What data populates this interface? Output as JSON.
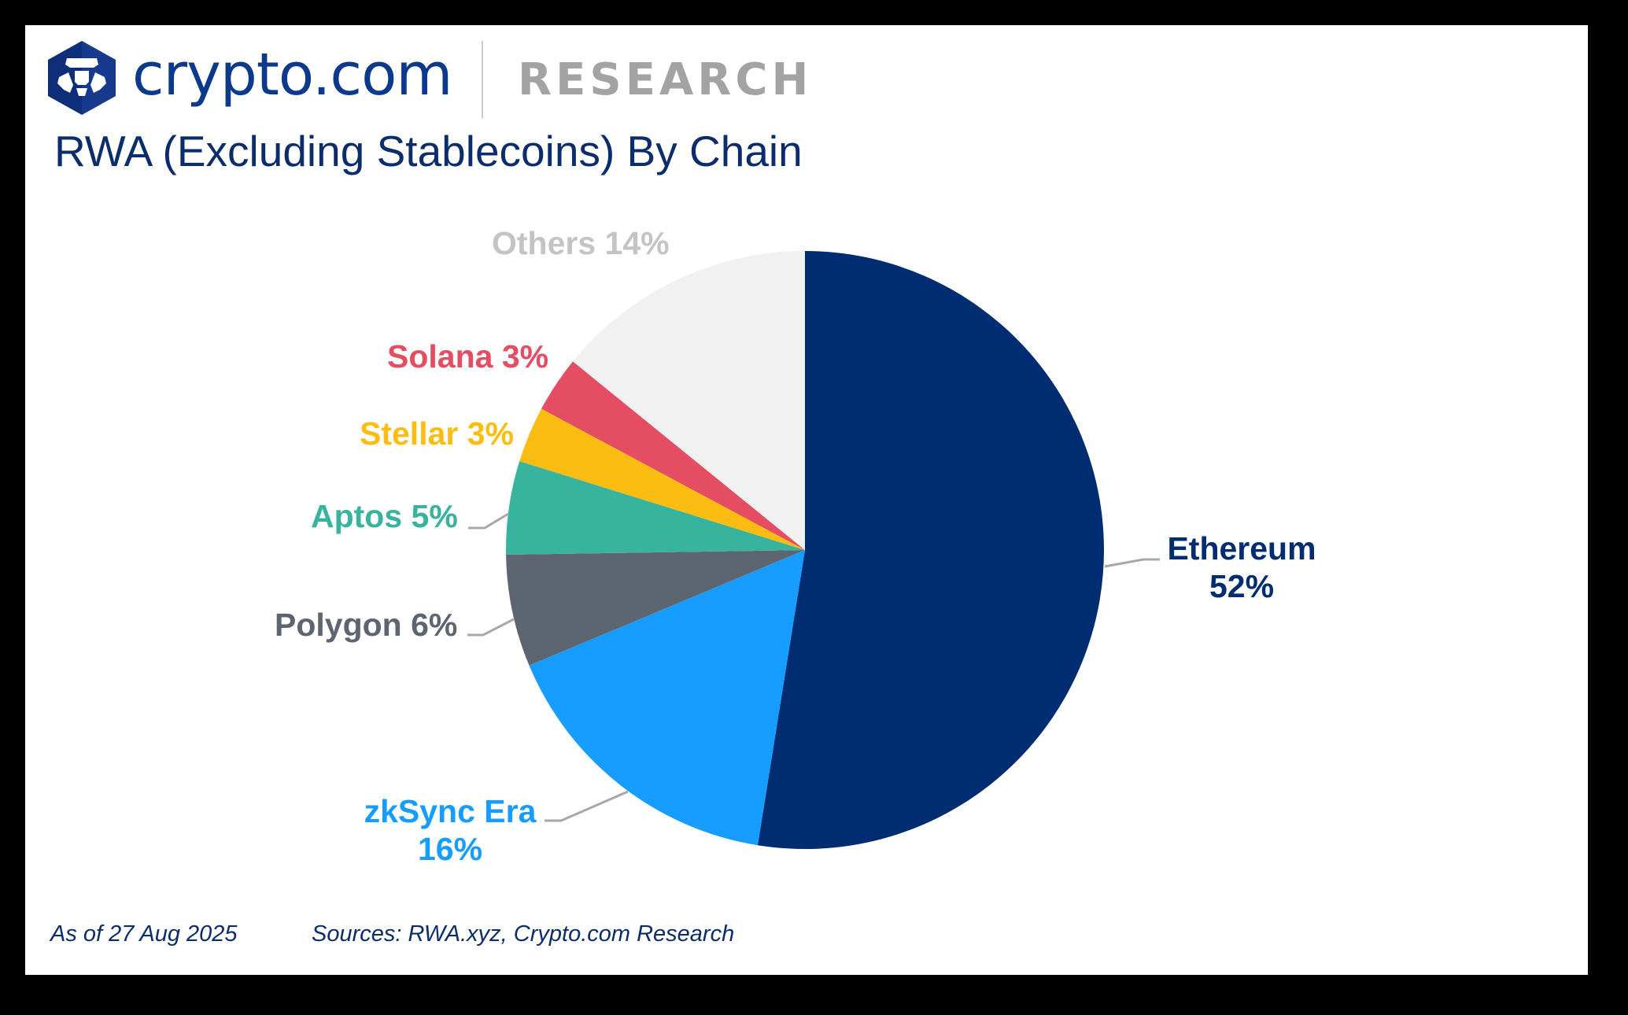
{
  "header": {
    "brand": "crypto.com",
    "section": "RESEARCH",
    "logo_icon": "crypto-com-lion-hexagon-icon"
  },
  "title": "RWA (Excluding Stablecoins) By Chain",
  "footer": {
    "as_of": "As of 27 Aug 2025",
    "sources": "Sources: RWA.xyz, Crypto.com Research"
  },
  "colors": {
    "brand_blue": "#0b3a8c",
    "title_navy": "#0c2d6b",
    "research_gray": "#a3a3a3",
    "leader_line": "#a8a8a8"
  },
  "chart_data": {
    "type": "pie",
    "title": "RWA (Excluding Stablecoins) By Chain",
    "start_angle": "12 o'clock, clockwise",
    "legend": "none (direct labels with leader lines)",
    "categories": [
      "Ethereum",
      "zkSync Era",
      "Polygon",
      "Aptos",
      "Stellar",
      "Solana",
      "Others"
    ],
    "values": [
      52,
      16,
      6,
      5,
      3,
      3,
      14
    ],
    "unit": "%",
    "slices": [
      {
        "name": "Ethereum",
        "value": 52,
        "label_line1": "Ethereum",
        "label_line2": "52%",
        "color": "#002d72"
      },
      {
        "name": "zkSync Era",
        "value": 16,
        "label_line1": "zkSync Era",
        "label_line2": "16%",
        "color": "#169dff"
      },
      {
        "name": "Polygon",
        "value": 6,
        "label_line1": "Polygon 6%",
        "color": "#5d6670"
      },
      {
        "name": "Aptos",
        "value": 5,
        "label_line1": "Aptos 5%",
        "color": "#38b39d"
      },
      {
        "name": "Stellar",
        "value": 3,
        "label_line1": "Stellar 3%",
        "color": "#fbbd12"
      },
      {
        "name": "Solana",
        "value": 3,
        "label_line1": "Solana 3%",
        "color": "#e44d62"
      },
      {
        "name": "Others",
        "value": 14,
        "label_line1": "Others 14%",
        "color": "#f1f1f1",
        "label_color": "#c4c4c4"
      }
    ]
  }
}
